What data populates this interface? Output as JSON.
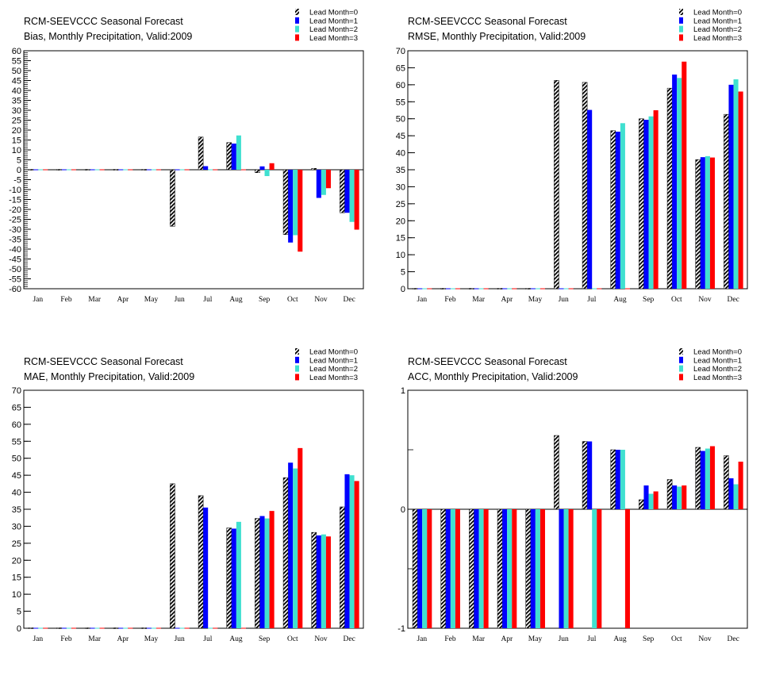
{
  "chart_data": [
    {
      "type": "bar",
      "title": "RCM-SEEVCCC Seasonal Forecast",
      "subtitle": "Bias, Monthly Precipitation, Valid:2009",
      "categories": [
        "Jan",
        "Feb",
        "Mar",
        "Apr",
        "May",
        "Jun",
        "Jul",
        "Aug",
        "Sep",
        "Oct",
        "Nov",
        "Dec"
      ],
      "ylim": [
        -60,
        60
      ],
      "yticks": [
        60,
        55,
        50,
        45,
        40,
        35,
        30,
        25,
        20,
        15,
        10,
        5,
        0,
        -5,
        -10,
        -15,
        -20,
        -25,
        -30,
        -35,
        -40,
        -45,
        -50,
        -55,
        -60
      ],
      "legend_position": "top-right",
      "series": [
        {
          "name": "Lead Month=0",
          "color": "hatched",
          "values": [
            0,
            0,
            0,
            0,
            0,
            -28.5,
            16.5,
            13.7,
            -1.5,
            -32.7,
            0.7,
            -21.7
          ]
        },
        {
          "name": "Lead Month=1",
          "color": "#0000ff",
          "values": [
            0,
            0,
            0,
            0,
            0,
            0,
            1.8,
            13.2,
            1.7,
            -36.7,
            -14.2,
            -21.7
          ]
        },
        {
          "name": "Lead Month=2",
          "color": "#40e0d0",
          "values": [
            0,
            0,
            0,
            0,
            0,
            0,
            0,
            17.3,
            -3.2,
            -33.0,
            -12.7,
            -26.3
          ]
        },
        {
          "name": "Lead Month=3",
          "color": "#ff0000",
          "values": [
            0,
            0,
            0,
            0,
            0,
            0,
            0,
            0,
            3.3,
            -41.3,
            -9.3,
            -30.2
          ]
        }
      ]
    },
    {
      "type": "bar",
      "title": "RCM-SEEVCCC Seasonal Forecast",
      "subtitle": "RMSE, Monthly Precipitation, Valid:2009",
      "categories": [
        "Jan",
        "Feb",
        "Mar",
        "Apr",
        "May",
        "Jun",
        "Jul",
        "Aug",
        "Sep",
        "Oct",
        "Nov",
        "Dec"
      ],
      "ylim": [
        0,
        70
      ],
      "yticks": [
        70,
        65,
        60,
        55,
        50,
        45,
        40,
        35,
        30,
        25,
        20,
        15,
        10,
        5,
        0
      ],
      "legend_position": "top-right",
      "series": [
        {
          "name": "Lead Month=0",
          "color": "hatched",
          "values": [
            0,
            0,
            0,
            0,
            0,
            61.3,
            60.7,
            46.5,
            50.0,
            59.0,
            38.0,
            51.3
          ]
        },
        {
          "name": "Lead Month=1",
          "color": "#0000ff",
          "values": [
            0,
            0,
            0,
            0,
            0,
            0,
            52.6,
            46.2,
            49.7,
            63.0,
            38.7,
            60.0
          ]
        },
        {
          "name": "Lead Month=2",
          "color": "#40e0d0",
          "values": [
            0,
            0,
            0,
            0,
            0,
            0,
            0,
            48.7,
            50.7,
            62.0,
            39.0,
            61.6
          ]
        },
        {
          "name": "Lead Month=3",
          "color": "#ff0000",
          "values": [
            0,
            0,
            0,
            0,
            0,
            0,
            0,
            0,
            52.5,
            66.8,
            38.6,
            58.0
          ]
        }
      ]
    },
    {
      "type": "bar",
      "title": "RCM-SEEVCCC Seasonal Forecast",
      "subtitle": "MAE, Monthly Precipitation, Valid:2009",
      "categories": [
        "Jan",
        "Feb",
        "Mar",
        "Apr",
        "May",
        "Jun",
        "Jul",
        "Aug",
        "Sep",
        "Oct",
        "Nov",
        "Dec"
      ],
      "ylim": [
        0,
        70
      ],
      "yticks": [
        70,
        65,
        60,
        55,
        50,
        45,
        40,
        35,
        30,
        25,
        20,
        15,
        10,
        5,
        0
      ],
      "legend_position": "top-right",
      "series": [
        {
          "name": "Lead Month=0",
          "color": "hatched",
          "values": [
            0,
            0,
            0,
            0,
            0,
            42.5,
            39.0,
            29.5,
            32.3,
            44.3,
            28.2,
            35.7
          ]
        },
        {
          "name": "Lead Month=1",
          "color": "#0000ff",
          "values": [
            0,
            0,
            0,
            0,
            0,
            0,
            35.5,
            29.3,
            33.0,
            48.7,
            27.3,
            45.3
          ]
        },
        {
          "name": "Lead Month=2",
          "color": "#40e0d0",
          "values": [
            0,
            0,
            0,
            0,
            0,
            0,
            0,
            31.3,
            32.3,
            47.0,
            27.6,
            45.0
          ]
        },
        {
          "name": "Lead Month=3",
          "color": "#ff0000",
          "values": [
            0,
            0,
            0,
            0,
            0,
            0,
            0,
            0,
            34.5,
            53.0,
            27.0,
            43.3
          ]
        }
      ]
    },
    {
      "type": "bar",
      "title": "RCM-SEEVCCC Seasonal Forecast",
      "subtitle": "ACC, Monthly Precipitation, Valid:2009",
      "categories": [
        "Jan",
        "Feb",
        "Mar",
        "Apr",
        "May",
        "Jun",
        "Jul",
        "Aug",
        "Sep",
        "Oct",
        "Nov",
        "Dec"
      ],
      "ylim": [
        -1,
        1
      ],
      "yticks": [
        1,
        0,
        -1
      ],
      "legend_position": "top-right",
      "series": [
        {
          "name": "Lead Month=0",
          "color": "hatched",
          "values": [
            -1,
            -1,
            -1,
            -1,
            -1,
            0.62,
            0.57,
            0.5,
            0.08,
            0.25,
            0.52,
            0.45
          ]
        },
        {
          "name": "Lead Month=1",
          "color": "#0000ff",
          "values": [
            -1,
            -1,
            -1,
            -1,
            -1,
            -1,
            0.57,
            0.5,
            0.2,
            0.2,
            0.49,
            0.26
          ]
        },
        {
          "name": "Lead Month=2",
          "color": "#40e0d0",
          "values": [
            -1,
            -1,
            -1,
            -1,
            -1,
            -1,
            -1,
            0.5,
            0.13,
            0.19,
            0.51,
            0.21
          ]
        },
        {
          "name": "Lead Month=3",
          "color": "#ff0000",
          "values": [
            -1,
            -1,
            -1,
            -1,
            -1,
            -1,
            -1,
            -1,
            0.15,
            0.2,
            0.53,
            0.4
          ]
        }
      ]
    }
  ]
}
